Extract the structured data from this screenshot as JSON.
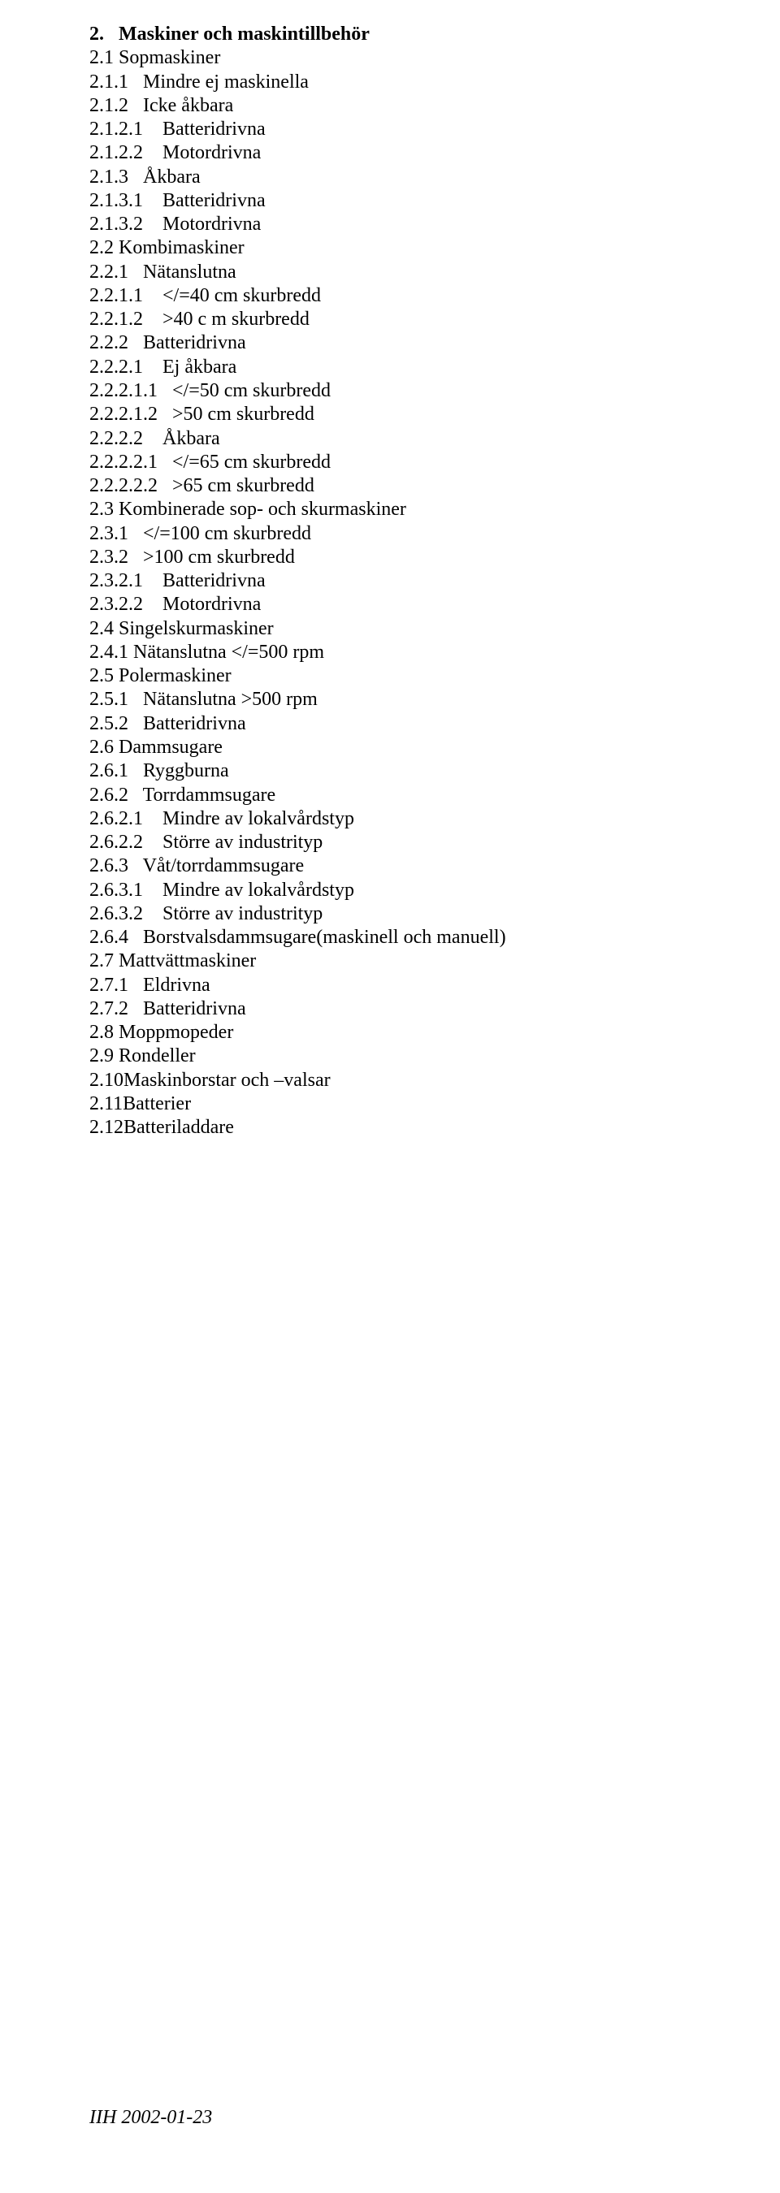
{
  "heading": "2.   Maskiner och maskintillbehör",
  "lines": [
    "2.1 Sopmaskiner",
    "2.1.1   Mindre ej maskinella",
    "2.1.2   Icke åkbara",
    "2.1.2.1    Batteridrivna",
    "2.1.2.2    Motordrivna",
    "2.1.3   Åkbara",
    "2.1.3.1    Batteridrivna",
    "2.1.3.2    Motordrivna",
    "2.2 Kombimaskiner",
    "2.2.1   Nätanslutna",
    "2.2.1.1    </=40 cm skurbredd",
    "2.2.1.2    >40 c m skurbredd",
    "2.2.2   Batteridrivna",
    "2.2.2.1    Ej åkbara",
    "2.2.2.1.1   </=50 cm skurbredd",
    "2.2.2.1.2   >50 cm skurbredd",
    "2.2.2.2    Åkbara",
    "2.2.2.2.1   </=65 cm skurbredd",
    "2.2.2.2.2   >65 cm skurbredd",
    "2.3 Kombinerade sop- och skurmaskiner",
    "2.3.1   </=100 cm skurbredd",
    "2.3.2   >100 cm skurbredd",
    "2.3.2.1    Batteridrivna",
    "2.3.2.2    Motordrivna",
    "2.4 Singelskurmaskiner",
    "2.4.1 Nätanslutna </=500 rpm",
    "2.5 Polermaskiner",
    "2.5.1   Nätanslutna >500 rpm",
    "2.5.2   Batteridrivna",
    "2.6 Dammsugare",
    "2.6.1   Ryggburna",
    "2.6.2   Torrdammsugare",
    "2.6.2.1    Mindre av lokalvårdstyp",
    "2.6.2.2    Större av industrityp",
    "2.6.3   Våt/torrdammsugare",
    "2.6.3.1    Mindre av lokalvårdstyp",
    "2.6.3.2    Större av industrityp",
    "2.6.4   Borstvalsdammsugare(maskinell och manuell)",
    "2.7 Mattvättmaskiner",
    "2.7.1   Eldrivna",
    "2.7.2   Batteridrivna",
    "2.8 Moppmopeder",
    "2.9 Rondeller",
    "2.10Maskinborstar och –valsar",
    "2.11Batterier",
    "2.12Batteriladdare"
  ],
  "footer": "IIH 2002-01-23"
}
